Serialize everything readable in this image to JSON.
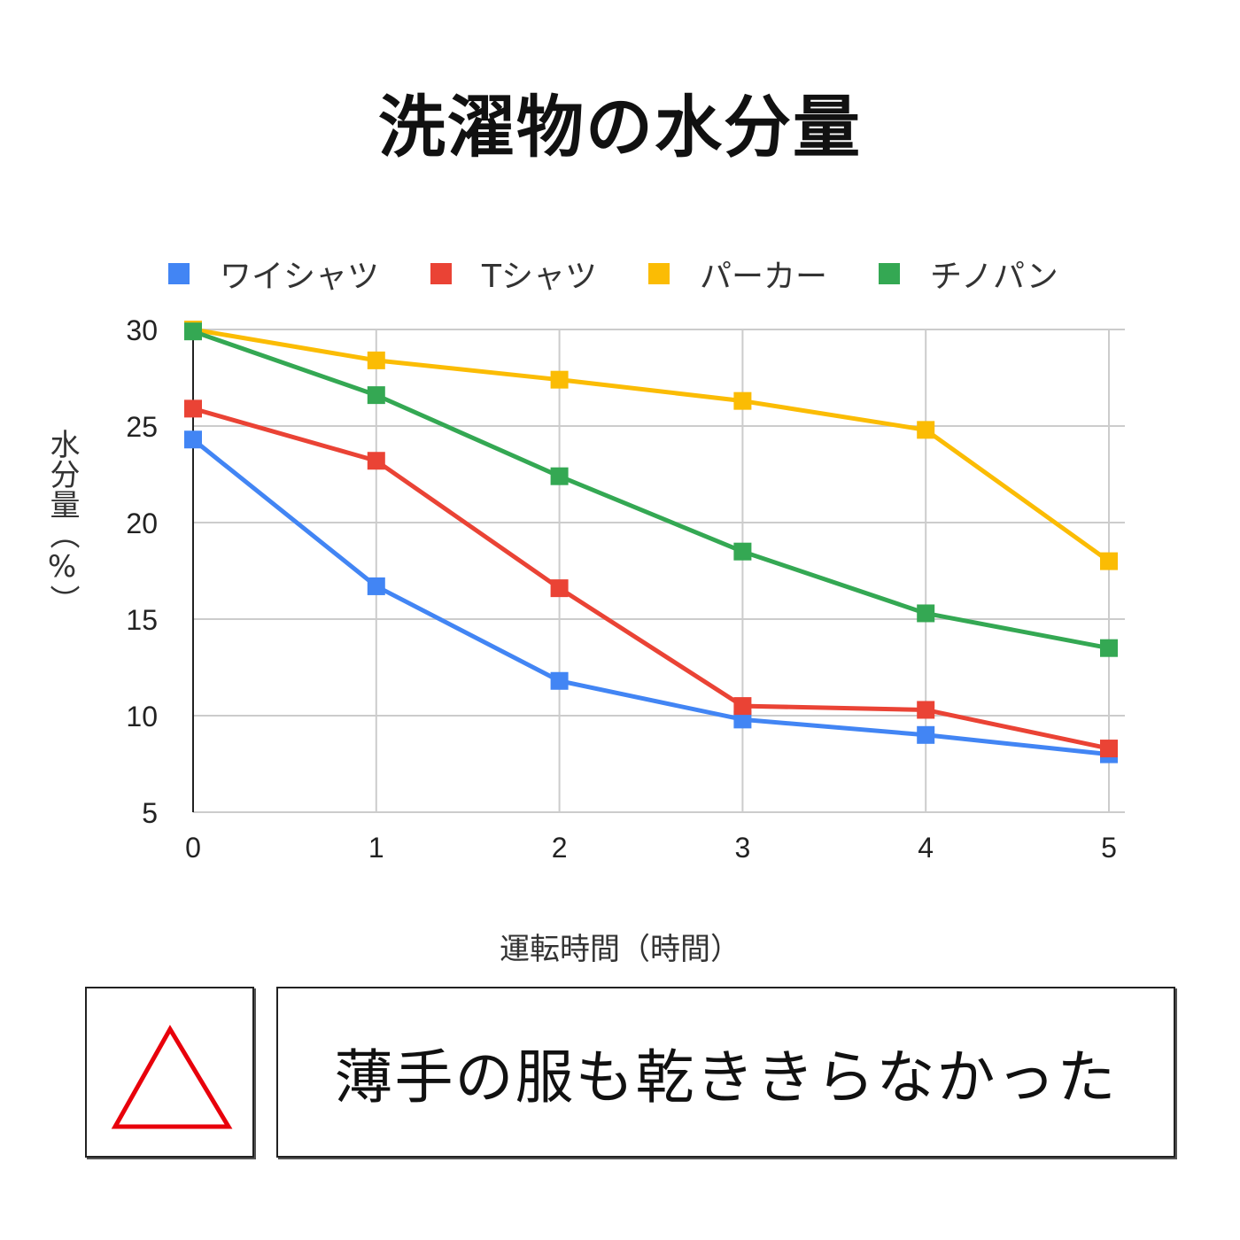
{
  "title": "洗濯物の水分量",
  "chart_data": {
    "type": "line",
    "x": [
      0,
      1,
      2,
      3,
      4,
      5
    ],
    "xlabel": "運転時間（時間）",
    "ylabel": "水分量（%）",
    "ylim": [
      5,
      30
    ],
    "yticks": [
      5,
      10,
      15,
      20,
      25,
      30
    ],
    "grid": true,
    "legend_position": "top",
    "series": [
      {
        "name": "ワイシャツ",
        "color": "#4285F4",
        "values": [
          24.3,
          16.7,
          11.8,
          9.8,
          9.0,
          8.0
        ]
      },
      {
        "name": "Tシャツ",
        "color": "#EA4335",
        "values": [
          25.9,
          23.2,
          16.6,
          10.5,
          10.3,
          8.3
        ]
      },
      {
        "name": "パーカー",
        "color": "#FBBC04",
        "values": [
          30.0,
          28.4,
          27.4,
          26.3,
          24.8,
          18.0
        ]
      },
      {
        "name": "チノパン",
        "color": "#34A853",
        "values": [
          29.9,
          26.6,
          22.4,
          18.5,
          15.3,
          13.5
        ]
      }
    ]
  },
  "rating": {
    "icon": "triangle-icon",
    "color": "#E8000B"
  },
  "comment": "薄手の服も乾ききらなかった"
}
